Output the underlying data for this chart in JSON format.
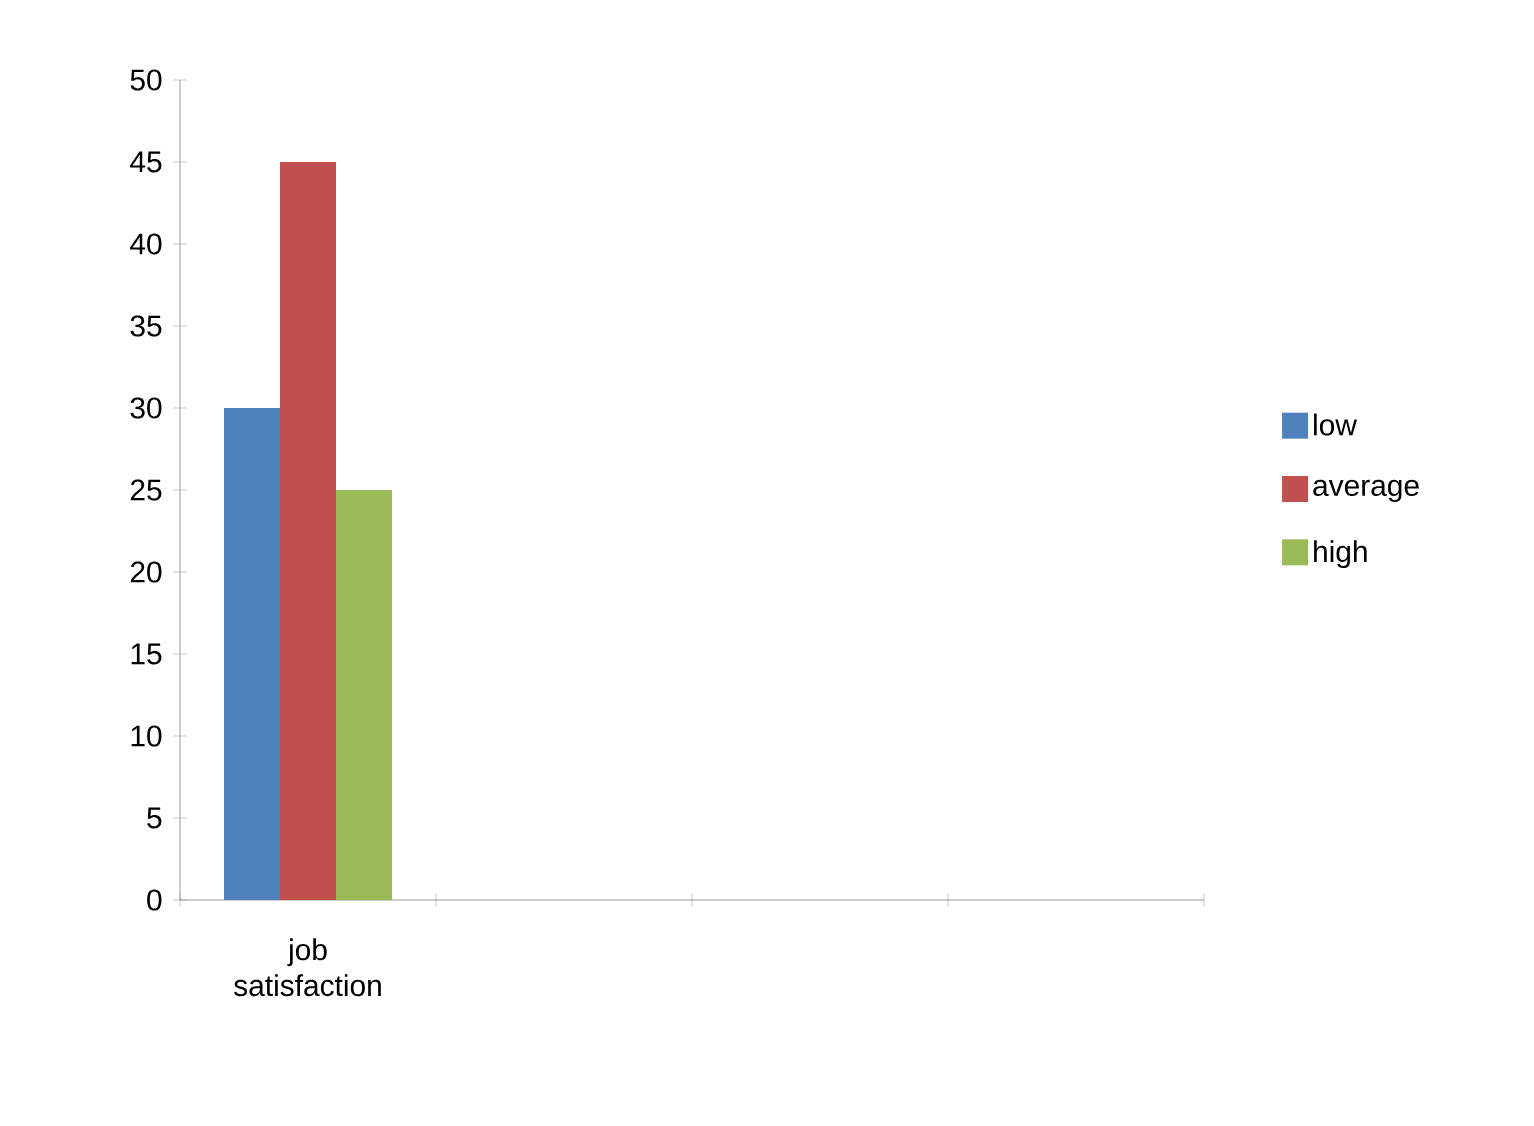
{
  "chart_data": {
    "type": "bar",
    "categories": [
      "job satisfaction",
      null,
      null,
      null
    ],
    "series": [
      {
        "name": "low",
        "color": "#4f81bd",
        "values": [
          30,
          null,
          null,
          null
        ]
      },
      {
        "name": "average",
        "color": "#c0504d",
        "values": [
          45,
          null,
          null,
          null
        ]
      },
      {
        "name": "high",
        "color": "#9bbb59",
        "values": [
          25,
          null,
          null,
          null
        ]
      }
    ],
    "ylim": [
      0,
      50
    ],
    "yticks": [
      0,
      5,
      10,
      15,
      20,
      25,
      30,
      35,
      40,
      45,
      50
    ],
    "legend": "right"
  }
}
